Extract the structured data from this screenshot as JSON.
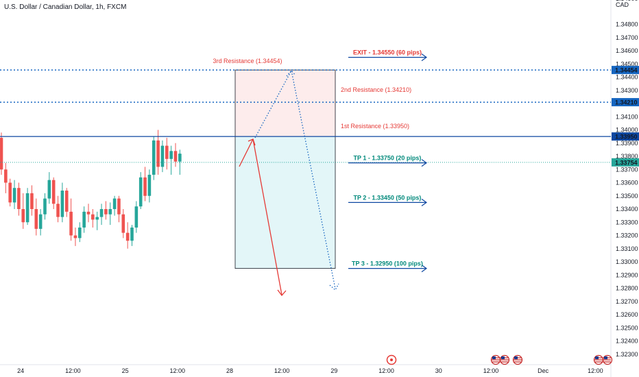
{
  "symbol_title": "U.S. Dollar / Canadian Dollar, 1h, FXCM",
  "currency_label": "CAD",
  "colors": {
    "bull": "#26a69a",
    "bear": "#ef5350",
    "resistance": "#e53935",
    "target": "#00897b",
    "line_blue": "#0d47a1",
    "dotted_blue": "#1565c0",
    "zone_top_fill": "#fdecec",
    "zone_bottom_fill": "#e3f6f8"
  },
  "chart_data": {
    "type": "candlestick",
    "y_axis": {
      "min": 1.3225,
      "max": 1.35,
      "ticks": [
        "1.32300",
        "1.32400",
        "1.32500",
        "1.32600",
        "1.32700",
        "1.32800",
        "1.32900",
        "1.33000",
        "1.33100",
        "1.33200",
        "1.33300",
        "1.33400",
        "1.33500",
        "1.33600",
        "1.33700",
        "1.33800",
        "1.33900",
        "1.34000",
        "1.34100",
        "1.34200",
        "1.34300",
        "1.34400",
        "1.34500",
        "1.34600",
        "1.34700",
        "1.34800"
      ],
      "top_partial": "1.34900"
    },
    "x_axis": {
      "ticks": [
        {
          "label": "24",
          "x": 0.5
        },
        {
          "label": "12:00",
          "x": 12.5
        },
        {
          "label": "25",
          "x": 24.5
        },
        {
          "label": "12:00",
          "x": 36.5
        },
        {
          "label": "28",
          "x": 48.5
        },
        {
          "label": "12:00",
          "x": 60.5
        },
        {
          "label": "29",
          "x": 72.5
        },
        {
          "label": "12:00",
          "x": 84.5
        },
        {
          "label": "30",
          "x": 96.5
        },
        {
          "label": "12:00",
          "x": 108.5
        },
        {
          "label": "Dec",
          "x": 120.5
        },
        {
          "label": "12:00",
          "x": 132.5
        }
      ]
    },
    "candles": [
      [
        1.3394,
        1.3398,
        1.3366,
        1.337
      ],
      [
        1.337,
        1.3375,
        1.3352,
        1.336
      ],
      [
        1.336,
        1.3363,
        1.3342,
        1.3345
      ],
      [
        1.3345,
        1.3362,
        1.334,
        1.3356
      ],
      [
        1.3356,
        1.336,
        1.3335,
        1.334
      ],
      [
        1.334,
        1.3352,
        1.3325,
        1.333
      ],
      [
        1.333,
        1.3356,
        1.3328,
        1.3352
      ],
      [
        1.3352,
        1.3358,
        1.3335,
        1.334
      ],
      [
        1.334,
        1.3348,
        1.332,
        1.3325
      ],
      [
        1.3325,
        1.334,
        1.332,
        1.3336
      ],
      [
        1.3336,
        1.3352,
        1.3332,
        1.3348
      ],
      [
        1.3348,
        1.3368,
        1.3344,
        1.3362
      ],
      [
        1.3362,
        1.3364,
        1.334,
        1.3344
      ],
      [
        1.3344,
        1.335,
        1.333,
        1.3334
      ],
      [
        1.3334,
        1.336,
        1.333,
        1.3354
      ],
      [
        1.3354,
        1.3356,
        1.3334,
        1.3338
      ],
      [
        1.3338,
        1.3348,
        1.3316,
        1.332
      ],
      [
        1.332,
        1.3326,
        1.3312,
        1.3318
      ],
      [
        1.3318,
        1.333,
        1.3315,
        1.3326
      ],
      [
        1.3326,
        1.3342,
        1.3322,
        1.3338
      ],
      [
        1.3338,
        1.3344,
        1.333,
        1.3336
      ],
      [
        1.3336,
        1.334,
        1.3326,
        1.3332
      ],
      [
        1.3332,
        1.3338,
        1.3324,
        1.3334
      ],
      [
        1.3334,
        1.3344,
        1.3328,
        1.334
      ],
      [
        1.334,
        1.3346,
        1.3332,
        1.3336
      ],
      [
        1.3336,
        1.3345,
        1.3328,
        1.334
      ],
      [
        1.334,
        1.335,
        1.3335,
        1.3348
      ],
      [
        1.3348,
        1.335,
        1.333,
        1.3336
      ],
      [
        1.3336,
        1.334,
        1.3318,
        1.3322
      ],
      [
        1.3322,
        1.333,
        1.331,
        1.3316
      ],
      [
        1.3316,
        1.3328,
        1.3312,
        1.3326
      ],
      [
        1.3326,
        1.3346,
        1.3322,
        1.3342
      ],
      [
        1.3342,
        1.3368,
        1.334,
        1.3364
      ],
      [
        1.3364,
        1.3372,
        1.3346,
        1.335
      ],
      [
        1.335,
        1.337,
        1.3345,
        1.3366
      ],
      [
        1.3366,
        1.3395,
        1.3362,
        1.3392
      ],
      [
        1.3392,
        1.34,
        1.3366,
        1.3372
      ],
      [
        1.3372,
        1.3392,
        1.3368,
        1.3388
      ],
      [
        1.3388,
        1.3394,
        1.337,
        1.3378
      ],
      [
        1.3378,
        1.3388,
        1.3366,
        1.3384
      ],
      [
        1.3384,
        1.339,
        1.3372,
        1.3376
      ],
      [
        1.3376,
        1.3385,
        1.3366,
        1.3382
      ]
    ],
    "last_price": 1.33754
  },
  "levels": {
    "exit": {
      "price": 1.3455,
      "label": "EXIT - 1.34550 (60 pips)"
    },
    "r3": {
      "price": 1.34454,
      "label": "3rd Resistance (1.34454)",
      "tag": "1.34454"
    },
    "r2": {
      "price": 1.3421,
      "label": "2nd Resistance (1.34210)",
      "tag": "1.34210"
    },
    "r1": {
      "price": 1.3395,
      "label": "1st Resistance (1.33950)",
      "tag": "1.33950"
    },
    "tp1": {
      "price": 1.3375,
      "label": "TP 1 - 1.33750 (20 pips)"
    },
    "current": {
      "price": 1.33754,
      "tag": "1.33754"
    },
    "tp2": {
      "price": 1.3345,
      "label": "TP 2 - 1.33450 (50 pips)"
    },
    "tp3": {
      "price": 1.3295,
      "label": "TP 3 - 1.32950 (100 pips)"
    }
  }
}
